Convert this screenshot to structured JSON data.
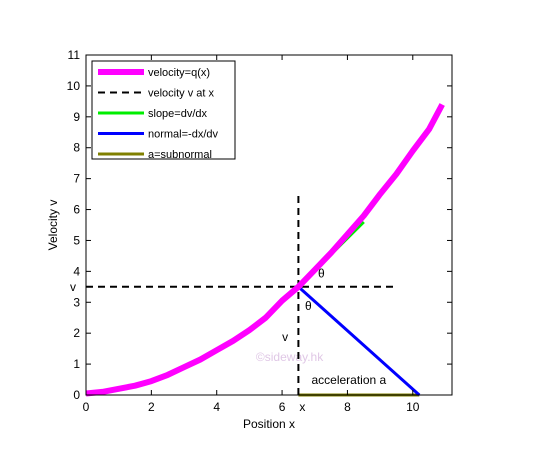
{
  "chart_data": {
    "type": "line",
    "xlabel": "Position x",
    "ylabel": "Velocity v",
    "xlim": [
      0,
      11.2
    ],
    "ylim": [
      0,
      11
    ],
    "xticks": [
      0,
      2,
      4,
      6,
      8,
      10
    ],
    "yticks": [
      0,
      1,
      2,
      3,
      4,
      5,
      6,
      7,
      8,
      9,
      10,
      11
    ],
    "grid": false,
    "legend_position": "top-left",
    "point": {
      "x": 6.5,
      "v": 3.5
    },
    "series": [
      {
        "name": "velocity=q(x)",
        "color": "#ff00ff",
        "style": "solid",
        "x": [
          0,
          0.5,
          1,
          1.5,
          2,
          2.5,
          3,
          3.5,
          4,
          4.5,
          5,
          5.5,
          6,
          6.5,
          7,
          7.5,
          8,
          8.5,
          9,
          9.5,
          10,
          10.5,
          10.9
        ],
        "y": [
          0.05,
          0.1,
          0.2,
          0.3,
          0.45,
          0.65,
          0.9,
          1.15,
          1.45,
          1.75,
          2.1,
          2.5,
          3.05,
          3.5,
          4.05,
          4.6,
          5.2,
          5.8,
          6.5,
          7.15,
          7.9,
          8.6,
          9.4
        ]
      },
      {
        "name": "velocity v at x",
        "color": "#000000",
        "style": "dashed",
        "segments": [
          {
            "x": [
              0,
              9.5
            ],
            "y": [
              3.5,
              3.5
            ]
          },
          {
            "x": [
              6.5,
              6.5
            ],
            "y": [
              0,
              6.5
            ]
          }
        ]
      },
      {
        "name": "slope=dv/dx",
        "color": "#00ee00",
        "style": "solid",
        "x": [
          6.5,
          8.5
        ],
        "y": [
          3.5,
          5.6
        ]
      },
      {
        "name": "normal=-dx/dv",
        "color": "#0000ff",
        "style": "solid",
        "x": [
          6.5,
          10.2
        ],
        "y": [
          3.5,
          0
        ]
      },
      {
        "name": "a=subnormal",
        "color": "#808000",
        "style": "solid",
        "x": [
          6.5,
          10.2
        ],
        "y": [
          0,
          0
        ]
      }
    ],
    "annotations": [
      {
        "text": "θ",
        "x": 7.1,
        "y": 3.8
      },
      {
        "text": "θ",
        "x": 6.7,
        "y": 2.75
      },
      {
        "text": "v",
        "x": 6.0,
        "y": 1.75
      },
      {
        "text": "©sideway.hk",
        "x": 5.2,
        "y": 1.1
      },
      {
        "text": "acceleration a",
        "x": 6.9,
        "y": 0.35
      }
    ],
    "extra_tick_labels": {
      "x_at_point": "x",
      "v_at_point": "v"
    }
  },
  "colors": {
    "watermark": "#e0c8e6"
  }
}
